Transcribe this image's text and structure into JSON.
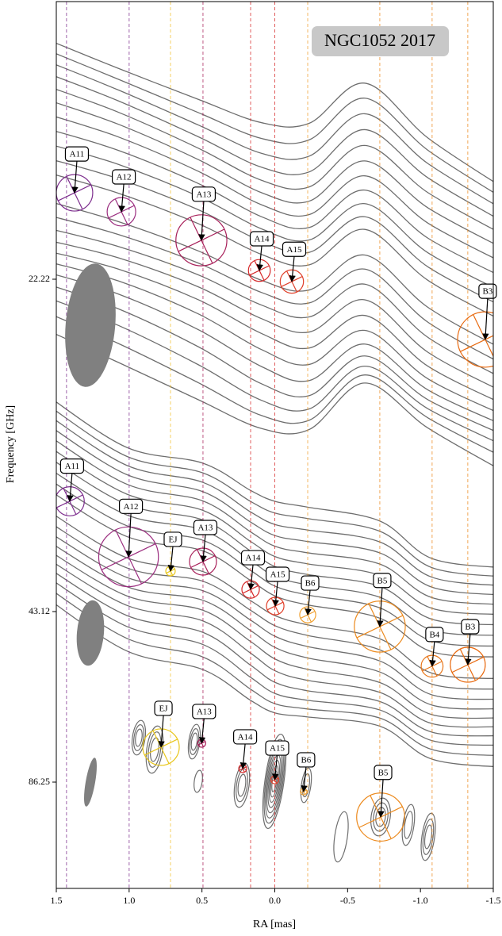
{
  "chart_data": {
    "type": "component_map",
    "title": "NGC1052 2017",
    "xlabel": "RA [mas]",
    "ylabel": "Frequency [GHz]",
    "xlim": [
      1.5,
      -1.5
    ],
    "xticks": [
      1.5,
      {
        "value": 1,
        "label": "1.0"
      },
      0.5,
      {
        "value": 0,
        "label": "0.0"
      },
      -0.5,
      {
        "value": -1,
        "label": "-1.0"
      },
      -1.5
    ],
    "guide_lines": [
      {
        "x": 1.43,
        "color": "#7e2f8e"
      },
      {
        "x": 1.0,
        "color": "#7e2f8e"
      },
      {
        "x": 0.716,
        "color": "#f0c030"
      },
      {
        "x": 0.493,
        "color": "#a8205a"
      },
      {
        "x": 0.166,
        "color": "#d62728"
      },
      {
        "x": 0.0,
        "color": "#d62728"
      },
      {
        "x": -0.226,
        "color": "#f0a030"
      },
      {
        "x": -0.721,
        "color": "#ec8a1e"
      },
      {
        "x": -1.08,
        "color": "#ec8a1e"
      },
      {
        "x": -1.325,
        "color": "#ec8a1e"
      }
    ],
    "panels": [
      {
        "frequency": 22.22,
        "beam": {
          "major": 0.85,
          "minor": 0.34,
          "pa": 5
        },
        "components": [
          {
            "name": "A11",
            "x": 1.375,
            "dec": 0.593,
            "size": 0.25,
            "color": "#7e2f8e"
          },
          {
            "name": "A12",
            "x": 1.053,
            "dec": 0.463,
            "size": 0.196,
            "color": "#9b2d7f"
          },
          {
            "name": "A13",
            "x": 0.504,
            "dec": 0.267,
            "size": 0.35,
            "color": "#a8205a"
          },
          {
            "name": "A14",
            "x": 0.106,
            "dec": 0.06,
            "size": 0.15,
            "color": "#d62728"
          },
          {
            "name": "A15",
            "x": -0.117,
            "dec": -0.016,
            "size": 0.16,
            "color": "#e0402a"
          },
          {
            "name": "B3",
            "x": -1.445,
            "dec": -0.414,
            "size": 0.38,
            "color": "#e86a10"
          }
        ]
      },
      {
        "frequency": 43.12,
        "beam": {
          "major": 0.45,
          "minor": 0.185,
          "pa": 5
        },
        "components": [
          {
            "name": "A11",
            "x": 1.408,
            "dec": 0.757,
            "size": 0.2,
            "color": "#7e2f8e"
          },
          {
            "name": "A12",
            "x": 1.004,
            "dec": 0.376,
            "size": 0.41,
            "color": "#9b2d7f"
          },
          {
            "name": "EJ",
            "x": 0.716,
            "dec": 0.278,
            "size": 0.065,
            "color": "#e8c61a"
          },
          {
            "name": "A13",
            "x": 0.493,
            "dec": 0.343,
            "size": 0.185,
            "color": "#a8205a"
          },
          {
            "name": "A14",
            "x": 0.166,
            "dec": 0.152,
            "size": 0.12,
            "color": "#d62728"
          },
          {
            "name": "A15",
            "x": -0.003,
            "dec": 0.038,
            "size": 0.12,
            "color": "#e0402a"
          },
          {
            "name": "B6",
            "x": -0.226,
            "dec": -0.022,
            "size": 0.11,
            "color": "#f0a030"
          },
          {
            "name": "B5",
            "x": -0.721,
            "dec": -0.103,
            "size": 0.35,
            "color": "#ec8a1e"
          },
          {
            "name": "B4",
            "x": -1.08,
            "dec": -0.375,
            "size": 0.15,
            "color": "#e8761a"
          },
          {
            "name": "B3",
            "x": -1.325,
            "dec": -0.365,
            "size": 0.24,
            "color": "#e86a10"
          }
        ]
      },
      {
        "frequency": 86.25,
        "beam": {
          "major": 0.34,
          "minor": 0.065,
          "pa": 10
        },
        "components": [
          {
            "name": "EJ",
            "x": 0.781,
            "dec": 0.24,
            "size": 0.25,
            "color": "#e8c61a"
          },
          {
            "name": "A13",
            "x": 0.502,
            "dec": 0.267,
            "size": 0.055,
            "color": "#a8205a"
          },
          {
            "name": "A14",
            "x": 0.22,
            "dec": 0.093,
            "size": 0.055,
            "color": "#d62728"
          },
          {
            "name": "A15",
            "x": 0.0,
            "dec": 0.016,
            "size": 0.055,
            "color": "#e0402a"
          },
          {
            "name": "B6",
            "x": -0.198,
            "dec": -0.065,
            "size": 0.045,
            "color": "#f0a030"
          },
          {
            "name": "B5",
            "x": -0.727,
            "dec": -0.24,
            "size": 0.33,
            "color": "#ec8a1e"
          }
        ]
      }
    ]
  }
}
